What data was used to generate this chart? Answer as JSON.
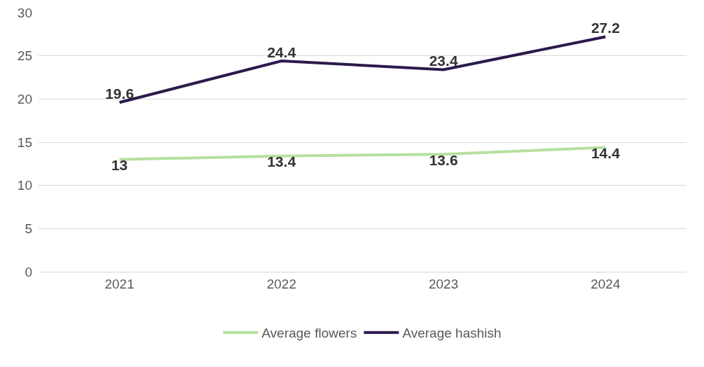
{
  "chart_data": {
    "type": "line",
    "categories": [
      "2021",
      "2022",
      "2023",
      "2024"
    ],
    "series": [
      {
        "name": "Average flowers",
        "color": "#b6e0a0",
        "values": [
          13,
          13.4,
          13.6,
          14.4
        ]
      },
      {
        "name": "Average hashish",
        "color": "#2b1a4c",
        "values": [
          19.6,
          24.4,
          23.4,
          27.2
        ]
      }
    ],
    "ylim": [
      0,
      30
    ],
    "yticks": [
      0,
      5,
      10,
      15,
      20,
      25,
      30
    ],
    "grid": "y",
    "legend": "bottom",
    "data_labels": true,
    "marker": "none",
    "line_style": "solid"
  }
}
